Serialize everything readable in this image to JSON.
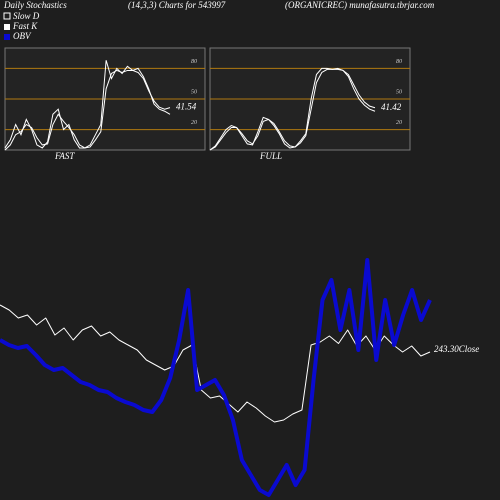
{
  "header": {
    "title": "Daily Stochastics",
    "subtitle": "(14,3,3) Charts for 543997",
    "source": "(ORGANICREC) munafasutra.tbrjar.com"
  },
  "chart_data": [
    {
      "type": "line",
      "title": "FAST",
      "ylim": [
        0,
        100
      ],
      "yticks": [
        80,
        50,
        20
      ],
      "series": [
        {
          "name": "Slow D",
          "color": "#ffffff",
          "values": [
            0,
            5,
            15,
            18,
            25,
            22,
            12,
            5,
            6,
            25,
            35,
            28,
            22,
            15,
            5,
            2,
            3,
            10,
            18,
            60,
            75,
            78,
            76,
            78,
            78,
            76,
            70,
            58,
            48,
            42,
            40,
            41.54
          ]
        },
        {
          "name": "Fast K",
          "color": "#ffffff",
          "values": [
            2,
            10,
            25,
            15,
            30,
            20,
            5,
            2,
            8,
            35,
            40,
            20,
            25,
            10,
            2,
            2,
            5,
            15,
            25,
            88,
            70,
            80,
            75,
            82,
            78,
            80,
            72,
            60,
            45,
            40,
            38,
            35
          ]
        }
      ]
    },
    {
      "type": "line",
      "title": "FULL",
      "ylim": [
        0,
        100
      ],
      "yticks": [
        80,
        50,
        20
      ],
      "series": [
        {
          "color": "#ffffff",
          "values": [
            0,
            3,
            10,
            17,
            22,
            22,
            16,
            9,
            6,
            14,
            28,
            30,
            26,
            18,
            9,
            4,
            3,
            7,
            14,
            40,
            66,
            76,
            79,
            79,
            79,
            78,
            74,
            64,
            54,
            47,
            43,
            41.42
          ]
        },
        {
          "color": "#ffffff",
          "values": [
            0,
            4,
            12,
            20,
            24,
            22,
            14,
            6,
            5,
            18,
            32,
            30,
            24,
            16,
            6,
            2,
            3,
            9,
            16,
            50,
            74,
            80,
            80,
            79,
            80,
            78,
            72,
            60,
            50,
            44,
            40,
            38
          ]
        }
      ]
    },
    {
      "type": "line",
      "annotation": "243.30Close",
      "series": [
        {
          "color": "#ffffff",
          "values": [
            262.1,
            260.1,
            256.9,
            258.1,
            254.1,
            256.9,
            250.1,
            252.9,
            248.1,
            252.1,
            253.7,
            249.7,
            251.3,
            248.1,
            246.1,
            244.1,
            240.1,
            238.1,
            236.1,
            237.7,
            244.1,
            246.1,
            228.1,
            224.9,
            225.7,
            222.5,
            219.3,
            223.3,
            220.9,
            217.7,
            215.3,
            216.1,
            218.5,
            220.1,
            246.1,
            247.3,
            249.7,
            246.7,
            252.1,
            245.7,
            249.7,
            244.1,
            249.7,
            246.1,
            243.3,
            245.7,
            241.7,
            243.3
          ]
        },
        {
          "name": "OBV",
          "color": "#0a0ad0",
          "values": [
            160,
            155,
            152,
            154,
            145,
            135,
            130,
            132,
            125,
            118,
            115,
            110,
            108,
            102,
            98,
            95,
            90,
            88,
            100,
            122,
            160,
            210,
            110,
            115,
            120,
            105,
            80,
            40,
            25,
            10,
            5,
            20,
            35,
            15,
            30,
            120,
            200,
            220,
            170,
            210,
            150,
            240,
            140,
            200,
            155,
            185,
            210,
            180,
            200
          ]
        }
      ]
    }
  ]
}
